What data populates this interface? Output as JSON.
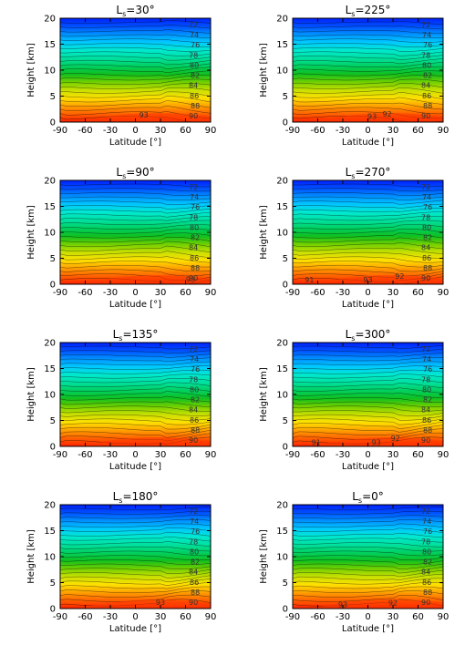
{
  "chart_data": [
    {
      "type": "heatmap",
      "title_prefix": "L",
      "title_sub": "s",
      "title_suffix": "=30°",
      "xlabel": "Latitude [°]",
      "ylabel": "Height [km]",
      "xlim": [
        -90,
        90
      ],
      "ylim": [
        0,
        20
      ],
      "xticks": [
        "-90",
        "-60",
        "-30",
        "0",
        "30",
        "60",
        "90"
      ],
      "yticks": [
        "0",
        "5",
        "10",
        "15",
        "20"
      ],
      "contour_labels": [
        {
          "text": "93",
          "x": 10,
          "y": 0.7
        }
      ]
    },
    {
      "type": "heatmap",
      "title_prefix": "L",
      "title_sub": "s",
      "title_suffix": "=225°",
      "xlabel": "Latitude [°]",
      "ylabel": "Height [km]",
      "xlim": [
        -90,
        90
      ],
      "ylim": [
        0,
        20
      ],
      "xticks": [
        "-90",
        "-60",
        "-30",
        "0",
        "30",
        "60",
        "90"
      ],
      "yticks": [
        "0",
        "5",
        "10",
        "15",
        "20"
      ],
      "contour_labels": [
        {
          "text": "93",
          "x": 5,
          "y": 0.4
        },
        {
          "text": "92",
          "x": 23,
          "y": 0.9
        }
      ]
    },
    {
      "type": "heatmap",
      "title_prefix": "L",
      "title_sub": "s",
      "title_suffix": "=90°",
      "xlabel": "Latitude [°]",
      "ylabel": "Height [km]",
      "xlim": [
        -90,
        90
      ],
      "ylim": [
        0,
        20
      ],
      "xticks": [
        "-90",
        "-60",
        "-30",
        "0",
        "30",
        "60",
        "90"
      ],
      "yticks": [
        "0",
        "5",
        "10",
        "15",
        "20"
      ],
      "contour_labels": [
        {
          "text": "93",
          "x": 66,
          "y": 0.3
        }
      ]
    },
    {
      "type": "heatmap",
      "title_prefix": "L",
      "title_sub": "s",
      "title_suffix": "=270°",
      "xlabel": "Latitude [°]",
      "ylabel": "Height [km]",
      "xlim": [
        -90,
        90
      ],
      "ylim": [
        0,
        20
      ],
      "xticks": [
        "-90",
        "-60",
        "-30",
        "0",
        "30",
        "60",
        "90"
      ],
      "yticks": [
        "0",
        "5",
        "10",
        "15",
        "20"
      ],
      "contour_labels": [
        {
          "text": "91",
          "x": -70,
          "y": 0.2
        },
        {
          "text": "93",
          "x": 0,
          "y": 0.2
        },
        {
          "text": "92",
          "x": 38,
          "y": 0.9
        }
      ]
    },
    {
      "type": "heatmap",
      "title_prefix": "L",
      "title_sub": "s",
      "title_suffix": "=135°",
      "xlabel": "Latitude [°]",
      "ylabel": "Height [km]",
      "xlim": [
        -90,
        90
      ],
      "ylim": [
        0,
        20
      ],
      "xticks": [
        "-90",
        "-60",
        "-30",
        "0",
        "30",
        "60",
        "90"
      ],
      "yticks": [
        "0",
        "5",
        "10",
        "15",
        "20"
      ],
      "contour_labels": []
    },
    {
      "type": "heatmap",
      "title_prefix": "L",
      "title_sub": "s",
      "title_suffix": "=300°",
      "xlabel": "Latitude [°]",
      "ylabel": "Height [km]",
      "xlim": [
        -90,
        90
      ],
      "ylim": [
        0,
        20
      ],
      "xticks": [
        "-90",
        "-60",
        "-30",
        "0",
        "30",
        "60",
        "90"
      ],
      "yticks": [
        "0",
        "5",
        "10",
        "15",
        "20"
      ],
      "contour_labels": [
        {
          "text": "91",
          "x": -62,
          "y": 0.1
        },
        {
          "text": "93",
          "x": 10,
          "y": 0.1
        },
        {
          "text": "92",
          "x": 33,
          "y": 0.9
        }
      ]
    },
    {
      "type": "heatmap",
      "title_prefix": "L",
      "title_sub": "s",
      "title_suffix": "=180°",
      "xlabel": "Latitude [°]",
      "ylabel": "Height [km]",
      "xlim": [
        -90,
        90
      ],
      "ylim": [
        0,
        20
      ],
      "xticks": [
        "-90",
        "-60",
        "-30",
        "0",
        "30",
        "60",
        "90"
      ],
      "yticks": [
        "0",
        "5",
        "10",
        "15",
        "20"
      ],
      "contour_labels": [
        {
          "text": "93",
          "x": 30,
          "y": 0.5
        }
      ]
    },
    {
      "type": "heatmap",
      "title_prefix": "L",
      "title_sub": "s",
      "title_suffix": "=0°",
      "xlabel": "Latitude [°]",
      "ylabel": "Height [km]",
      "xlim": [
        -90,
        90
      ],
      "ylim": [
        0,
        20
      ],
      "xticks": [
        "-90",
        "-60",
        "-30",
        "0",
        "30",
        "60",
        "90"
      ],
      "yticks": [
        "0",
        "5",
        "10",
        "15",
        "20"
      ],
      "contour_labels": [
        {
          "text": "93",
          "x": -30,
          "y": 0.1
        },
        {
          "text": "92",
          "x": 30,
          "y": 0.4
        }
      ]
    }
  ],
  "right_labels": [
    "72",
    "74",
    "76",
    "78",
    "80",
    "82",
    "84",
    "86",
    "88",
    "90"
  ],
  "colors": {
    "ramp": [
      "#0020ff",
      "#0050ff",
      "#0090ff",
      "#00c8ff",
      "#00e8d0",
      "#00e0a0",
      "#00d060",
      "#10c020",
      "#70d000",
      "#c8e000",
      "#ffe000",
      "#ffa000",
      "#ff6000",
      "#ff2000"
    ],
    "axis": "#000000"
  }
}
